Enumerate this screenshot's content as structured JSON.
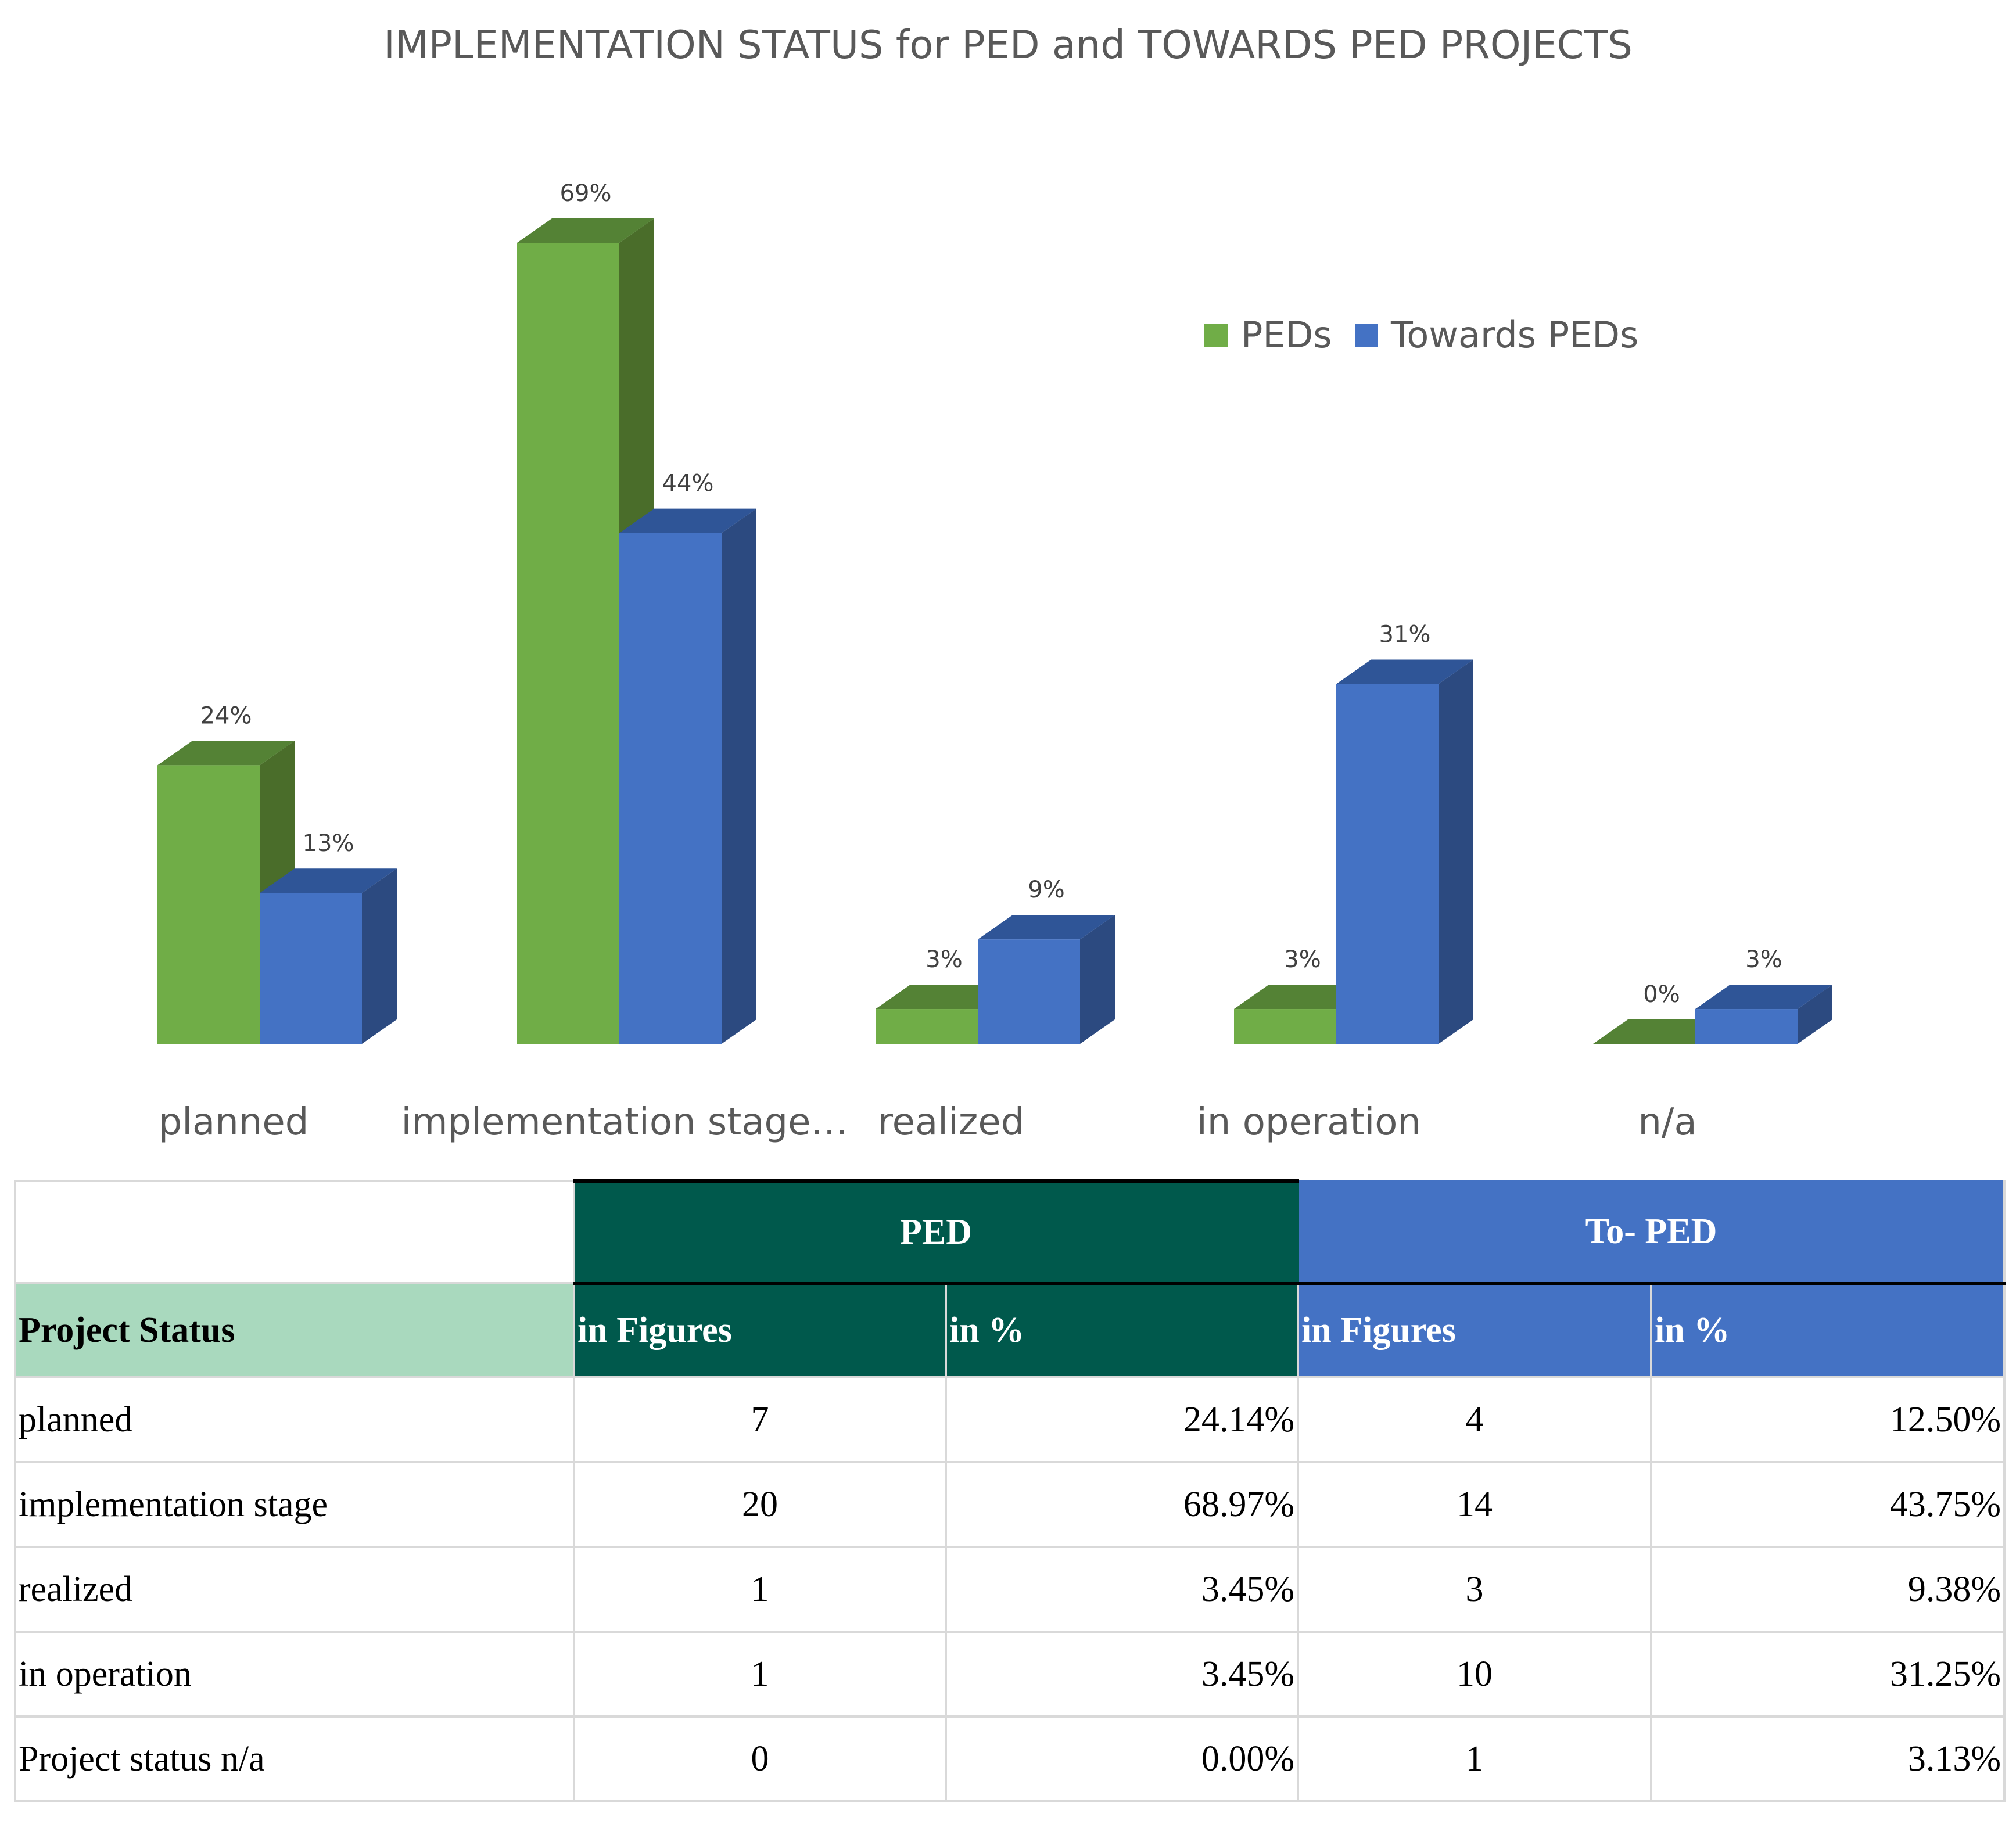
{
  "chart_data": {
    "type": "bar",
    "title": "IMPLEMENTATION  STATUS for PED and TOWARDS PED PROJECTS",
    "categories": [
      "planned",
      "implementation stage…",
      "realized",
      "in operation",
      "n/a"
    ],
    "series": [
      {
        "name": "PEDs",
        "values": [
          24,
          69,
          3,
          3,
          0
        ],
        "labels": [
          "24%",
          "69%",
          "3%",
          "3%",
          "0%"
        ],
        "color": "#70ad47",
        "side_color": "#4a6d2a",
        "top_color": "#548235"
      },
      {
        "name": "Towards PEDs",
        "values": [
          13,
          44,
          9,
          31,
          3
        ],
        "labels": [
          "13%",
          "44%",
          "9%",
          "31%",
          "3%"
        ],
        "color": "#4472c4",
        "side_color": "#2c4a80",
        "top_color": "#2f5597"
      }
    ],
    "ylim": [
      0,
      75
    ],
    "legend_position": "top-right",
    "xlabel": "",
    "ylabel": ""
  },
  "table": {
    "group_headers": {
      "ped": "PED",
      "toped": "To- PED"
    },
    "row_header_label": "Project Status",
    "sub_headers": {
      "ped_figures": "in Figures",
      "ped_percent": "in %",
      "toped_figures": "in Figures",
      "toped_percent": "in %"
    },
    "rows": [
      {
        "status": "planned",
        "ped_figures": "7",
        "ped_percent": "24.14%",
        "toped_figures": "4",
        "toped_percent": "12.50%"
      },
      {
        "status": "implementation stage",
        "ped_figures": "20",
        "ped_percent": "68.97%",
        "toped_figures": "14",
        "toped_percent": "43.75%"
      },
      {
        "status": "realized",
        "ped_figures": "1",
        "ped_percent": "3.45%",
        "toped_figures": "3",
        "toped_percent": "9.38%"
      },
      {
        "status": "in operation",
        "ped_figures": "1",
        "ped_percent": "3.45%",
        "toped_figures": "10",
        "toped_percent": "31.25%"
      },
      {
        "status": "Project status n/a",
        "ped_figures": "0",
        "ped_percent": "0.00%",
        "toped_figures": "1",
        "toped_percent": "3.13%"
      }
    ]
  }
}
